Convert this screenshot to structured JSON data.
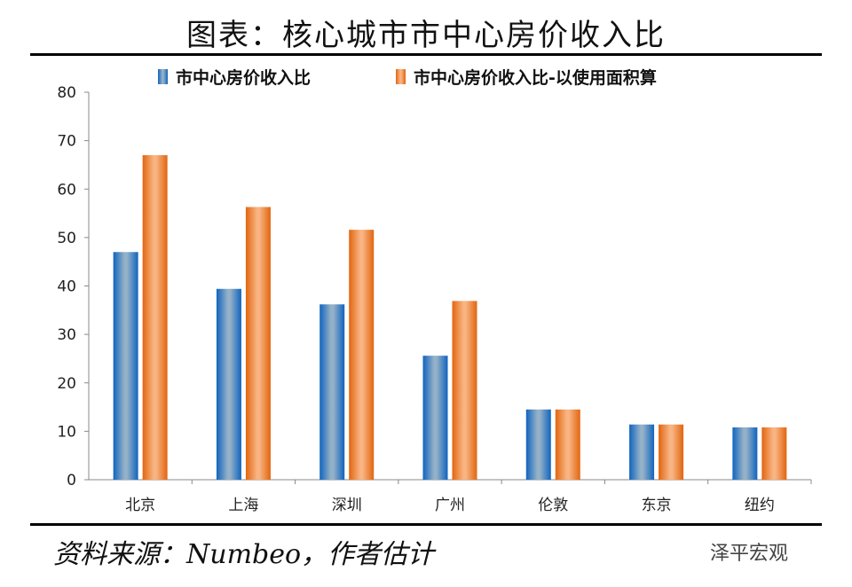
{
  "title": "图表：核心城市市中心房价收入比",
  "source": "资料来源：Numbeo，作者估计",
  "watermark": "泽平宏观",
  "chart_data": {
    "type": "bar",
    "title": "图表：核心城市市中心房价收入比",
    "categories": [
      "北京",
      "上海",
      "深圳",
      "广州",
      "伦敦",
      "东京",
      "纽约"
    ],
    "series": [
      {
        "name": "市中心房价收入比",
        "color": "#1f6fc0",
        "values": [
          47.0,
          39.4,
          36.2,
          25.6,
          14.5,
          11.4,
          10.8
        ]
      },
      {
        "name": "市中心房价收入比-以使用面积算",
        "color": "#e8701e",
        "values": [
          67.0,
          56.3,
          51.6,
          36.9,
          14.5,
          11.4,
          10.8
        ]
      }
    ],
    "ylim": [
      0,
      80
    ],
    "yticks": [
      0,
      10,
      20,
      30,
      40,
      50,
      60,
      70,
      80
    ],
    "grid": false,
    "legend": "top"
  }
}
